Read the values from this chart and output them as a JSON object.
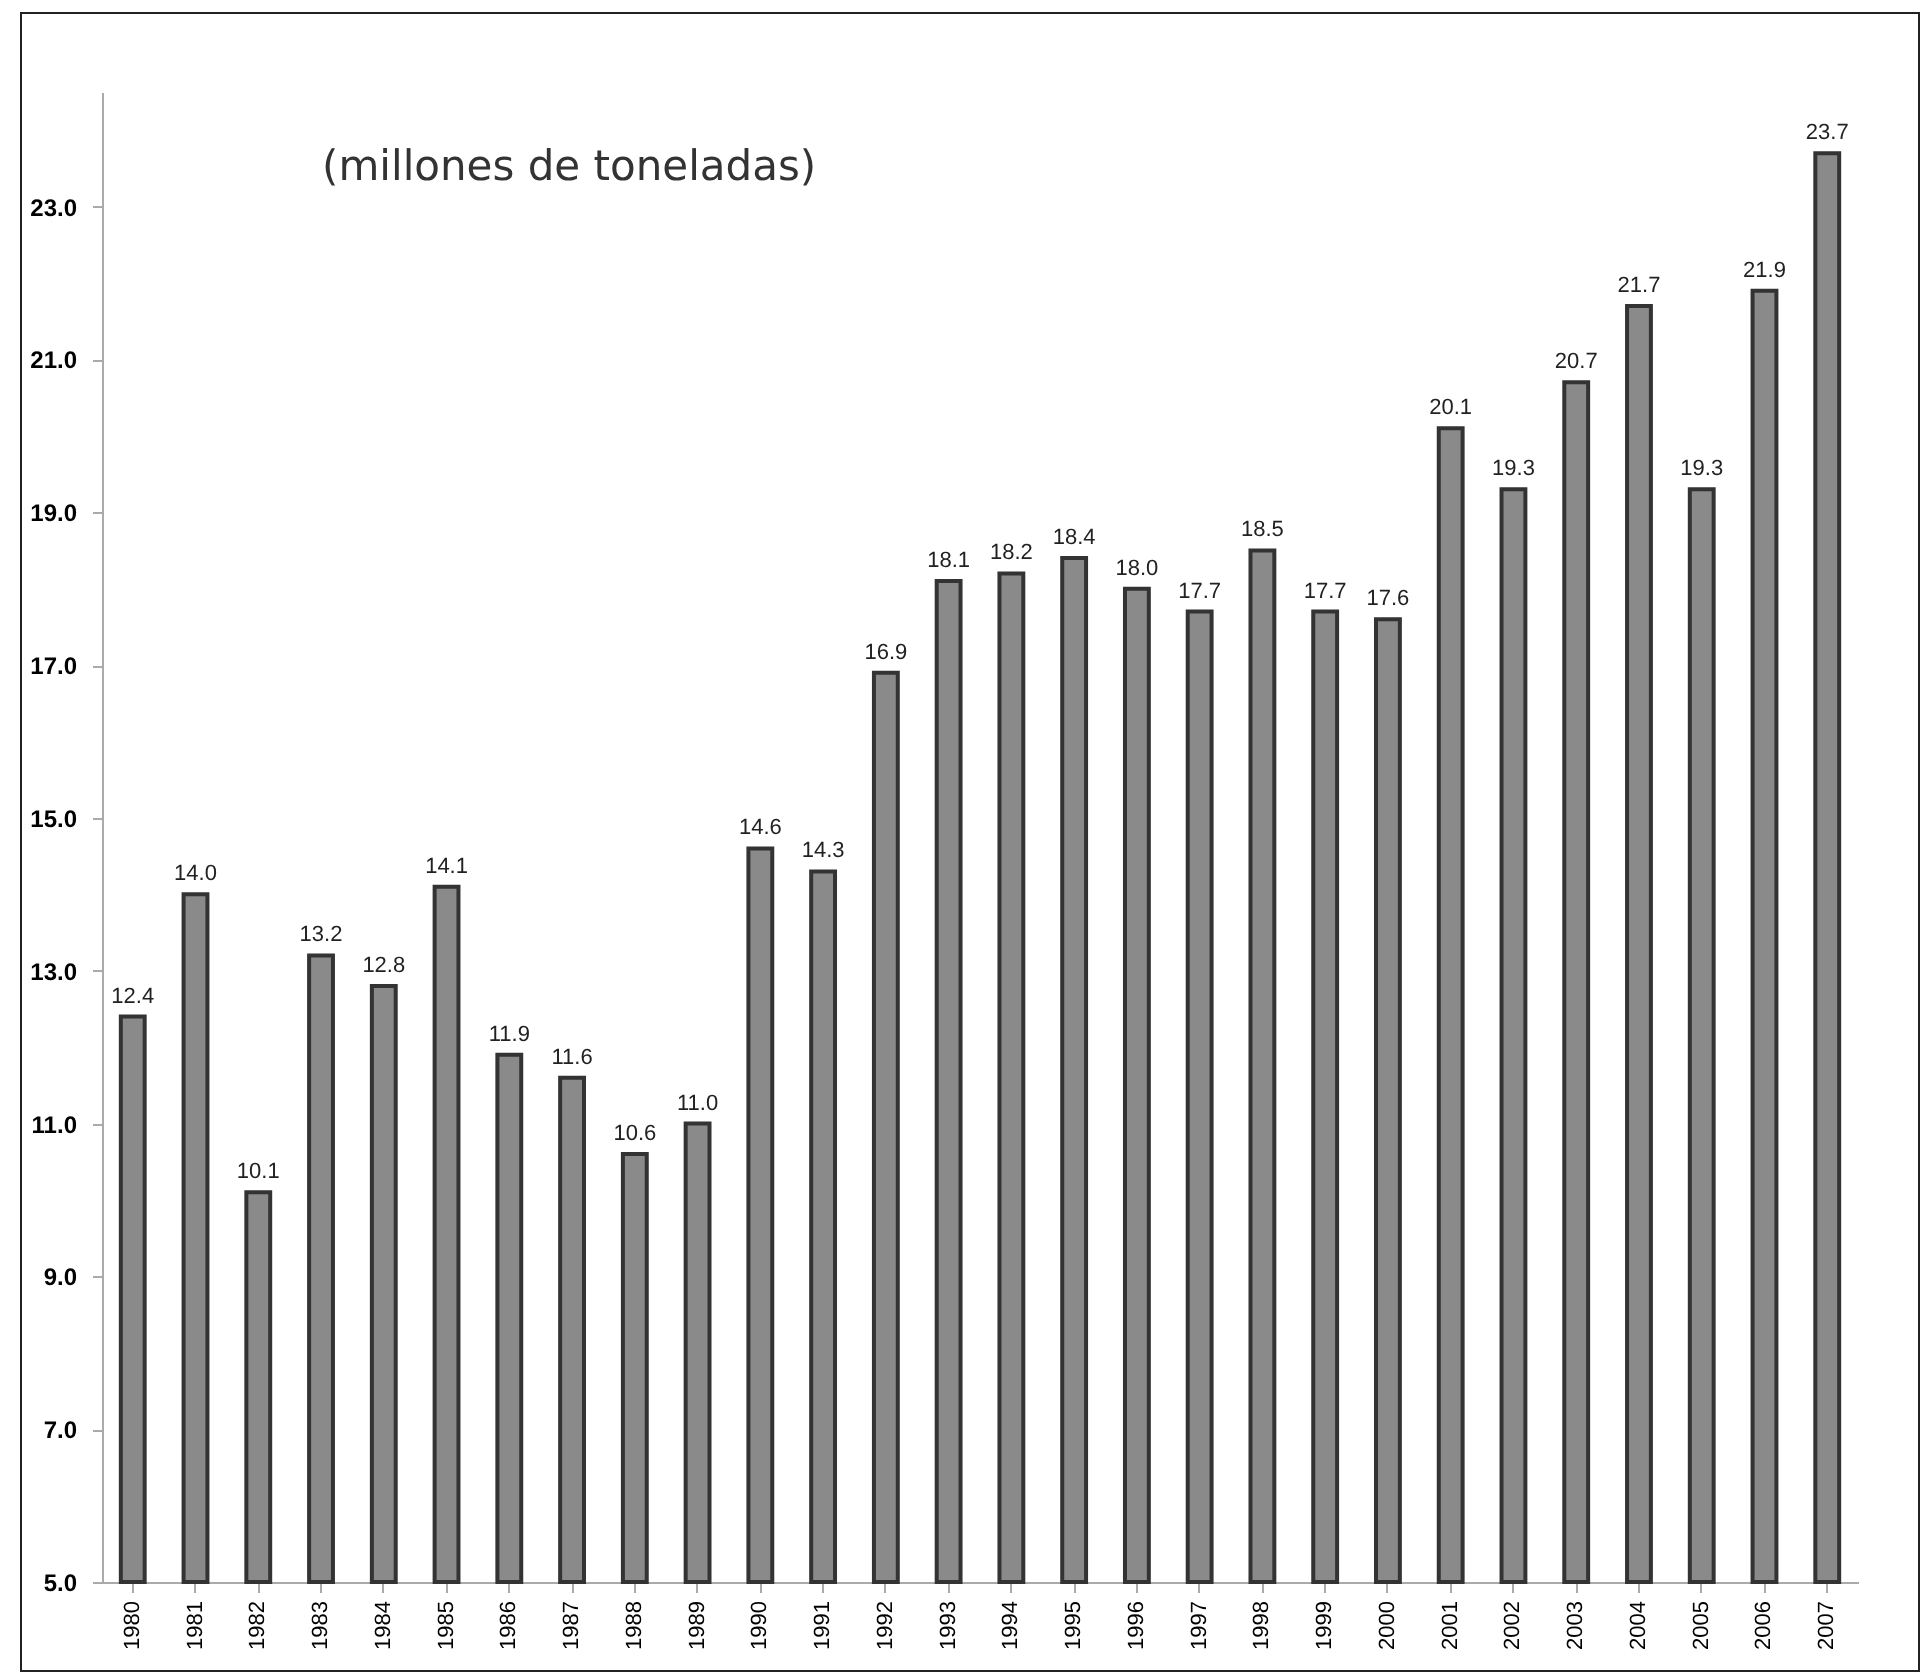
{
  "chart_data": {
    "type": "bar",
    "annotations": [
      "(millones de toneladas)"
    ],
    "categories": [
      "1980",
      "1981",
      "1982",
      "1983",
      "1984",
      "1985",
      "1986",
      "1987",
      "1988",
      "1989",
      "1990",
      "1991",
      "1992",
      "1993",
      "1994",
      "1995",
      "1996",
      "1997",
      "1998",
      "1999",
      "2000",
      "2001",
      "2002",
      "2003",
      "2004",
      "2005",
      "2006",
      "2007"
    ],
    "values": [
      12.4,
      14.0,
      10.1,
      13.2,
      12.8,
      14.1,
      11.9,
      11.6,
      10.6,
      11.0,
      14.6,
      14.3,
      16.9,
      18.1,
      18.2,
      18.4,
      18.0,
      17.7,
      18.5,
      17.7,
      17.6,
      20.1,
      19.3,
      20.7,
      21.7,
      19.3,
      21.9,
      23.7
    ],
    "value_labels": [
      "12.4",
      "14.0",
      "10.1",
      "13.2",
      "12.8",
      "14.1",
      "11.9",
      "11.6",
      "10.6",
      "11.0",
      "14.6",
      "14.3",
      "16.9",
      "18.1",
      "18.2",
      "18.4",
      "18.0",
      "17.7",
      "18.5",
      "17.7",
      "17.6",
      "20.1",
      "19.3",
      "20.7",
      "21.7",
      "19.3",
      "21.9",
      "23.7"
    ],
    "color": "#8a8a8a",
    "ylim": [
      5,
      24.5
    ],
    "yticks": [
      {
        "value": 5,
        "label": "5.0"
      },
      {
        "value": 7,
        "label": "7.0"
      },
      {
        "value": 9,
        "label": "9.0"
      },
      {
        "value": 11,
        "label": "11.0"
      },
      {
        "value": 13,
        "label": "13.0"
      },
      {
        "value": 15,
        "label": "15.0"
      },
      {
        "value": 17,
        "label": "17.0"
      },
      {
        "value": 19,
        "label": "19.0"
      },
      {
        "value": 21,
        "label": "21.0"
      },
      {
        "value": 23,
        "label": "23.0"
      }
    ],
    "grid": false
  }
}
